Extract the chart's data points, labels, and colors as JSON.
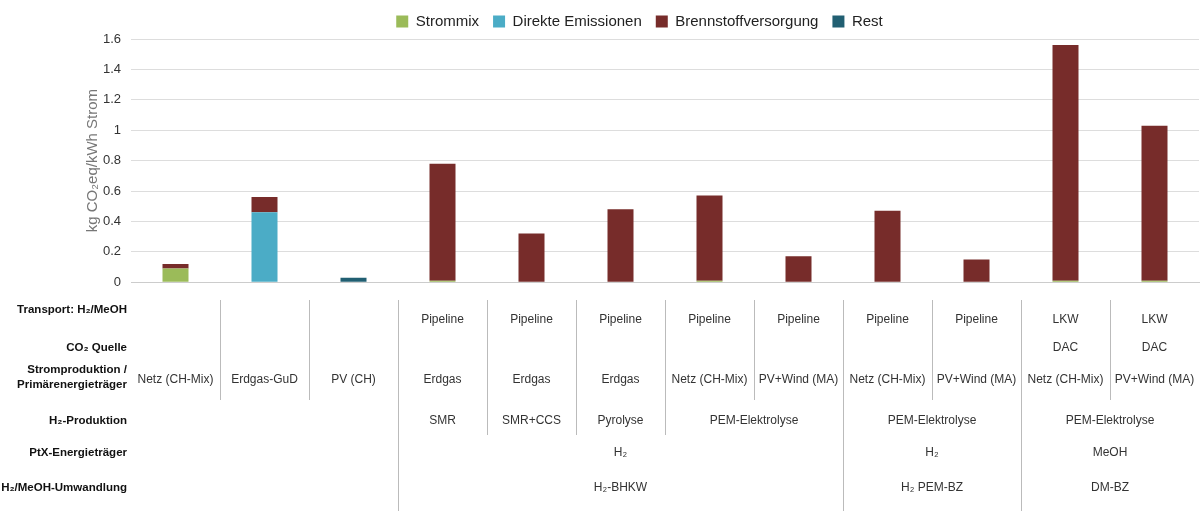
{
  "chart_data": {
    "type": "bar",
    "stacked": true,
    "ylabel": "kg CO₂eq/kWh Strom",
    "categories": [
      null,
      null,
      null,
      null,
      null,
      null,
      null,
      null,
      null,
      null,
      null,
      null
    ],
    "series": [
      {
        "name": "Strommix",
        "color": "#9bbb59",
        "values": [
          0.09,
          null,
          null,
          0.01,
          null,
          null,
          0.01,
          null,
          null,
          null,
          0.01,
          0.01
        ]
      },
      {
        "name": "Direkte Emissionen",
        "color": "#4bacc6",
        "values": [
          null,
          0.46,
          null,
          null,
          null,
          null,
          null,
          null,
          null,
          null,
          null,
          null
        ]
      },
      {
        "name": "Brennstoffversorgung",
        "color": "#772c2a",
        "values": [
          0.03,
          0.1,
          null,
          0.77,
          0.32,
          0.48,
          0.56,
          0.17,
          0.47,
          0.15,
          1.55,
          1.02
        ]
      },
      {
        "name": "Rest",
        "color": "#215f72",
        "values": [
          null,
          null,
          0.03,
          null,
          null,
          null,
          null,
          null,
          null,
          null,
          null,
          null
        ]
      }
    ],
    "ylim": [
      0,
      1.6
    ],
    "yticks": [
      0,
      0.2,
      0.4,
      0.6,
      0.8,
      1,
      1.2,
      1.4,
      1.6
    ],
    "grid": "y",
    "legend": "top",
    "annotations": [
      "Transport: H₂/MeOH",
      "CO₂ Quelle",
      "Stromproduktion / Primärenergieträger",
      "H₂-Produktion",
      "PtX-Energieträger",
      "H₂/MeOH-Umwandlung",
      "Pipeline",
      "Pipeline",
      "Pipeline",
      "Pipeline",
      "Pipeline",
      "Pipeline",
      "Pipeline",
      "LKW",
      "LKW",
      "DAC",
      "DAC",
      "SMR",
      "SMR+CCS",
      "Pyrolyse",
      "PEM-Elektrolyse",
      "PEM-Elektrolyse",
      "PEM-Elektrolyse",
      "H₂",
      "H₂",
      "MeOH",
      "H₂-BHKW",
      "H₂ PEM-BZ",
      "DM-BZ",
      "Netz (CH-Mix)",
      "Erdgas-GuD",
      "PV (CH)",
      "Erdgas",
      "Erdgas",
      "Erdgas",
      "Netz (CH-Mix)",
      "PV+Wind (MA)",
      "Netz (CH-Mix)",
      "PV+Wind (MA)",
      "Netz (CH-Mix)",
      "PV+Wind (MA)"
    ]
  }
}
